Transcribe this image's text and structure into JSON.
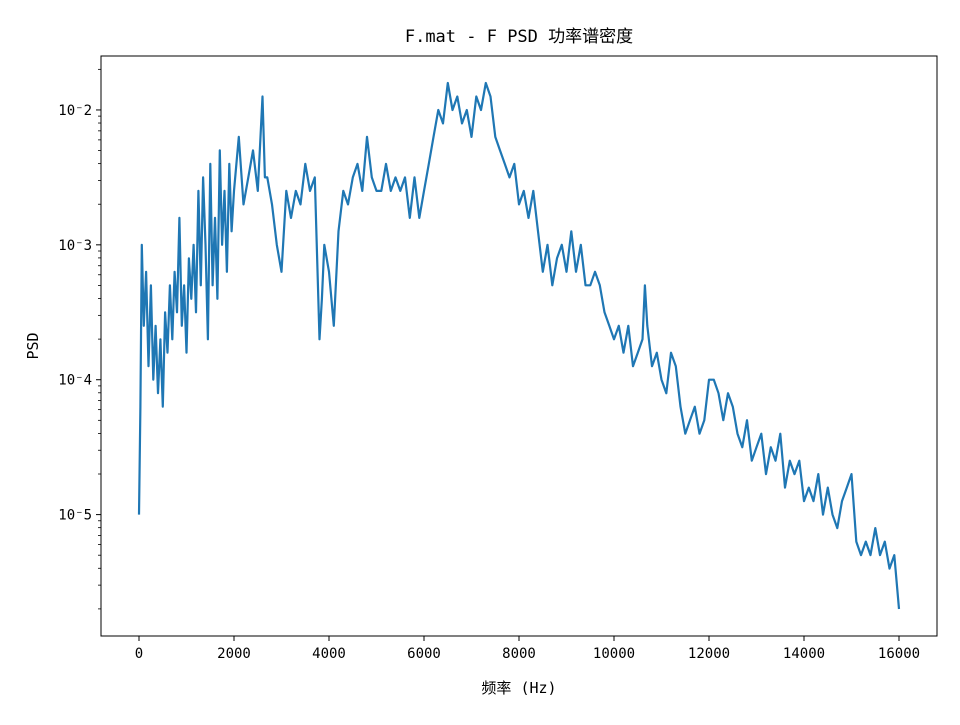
{
  "chart_data": {
    "type": "line",
    "title": "F.mat - F PSD 功率谱密度",
    "xlabel": "频率 (Hz)",
    "ylabel": "PSD",
    "xlim": [
      -800,
      16800
    ],
    "ylim_log10": [
      -5.9,
      -1.6
    ],
    "yscale": "log",
    "grid": false,
    "legend": "none",
    "line_color": "#1f77b4",
    "x_ticks": [
      {
        "value": 0,
        "label": "0"
      },
      {
        "value": 2000,
        "label": "2000"
      },
      {
        "value": 4000,
        "label": "4000"
      },
      {
        "value": 6000,
        "label": "6000"
      },
      {
        "value": 8000,
        "label": "8000"
      },
      {
        "value": 10000,
        "label": "10000"
      },
      {
        "value": 12000,
        "label": "12000"
      },
      {
        "value": 14000,
        "label": "14000"
      },
      {
        "value": 16000,
        "label": "16000"
      }
    ],
    "y_ticks": [
      {
        "log10": -2,
        "label": "10⁻2"
      },
      {
        "log10": -3,
        "label": "10⁻3"
      },
      {
        "log10": -4,
        "label": "10⁻4"
      },
      {
        "log10": -5,
        "label": "10⁻5"
      }
    ],
    "series": [
      {
        "x": [
          0,
          30,
          60,
          100,
          150,
          200,
          250,
          300,
          350,
          400,
          450,
          500,
          550,
          600,
          650,
          700,
          750,
          800,
          850,
          900,
          950,
          1000,
          1050,
          1100,
          1150,
          1200,
          1250,
          1300,
          1350,
          1400,
          1450,
          1500,
          1550,
          1600,
          1650,
          1700,
          1750,
          1800,
          1850,
          1900,
          1950,
          2000,
          2100,
          2200,
          2300,
          2400,
          2500,
          2600,
          2650,
          2700,
          2800,
          2900,
          3000,
          3100,
          3200,
          3300,
          3400,
          3500,
          3600,
          3700,
          3800,
          3850,
          3900,
          4000,
          4100,
          4200,
          4300,
          4400,
          4500,
          4600,
          4700,
          4800,
          4900,
          5000,
          5100,
          5200,
          5300,
          5400,
          5500,
          5600,
          5700,
          5800,
          5900,
          6000,
          6100,
          6200,
          6300,
          6400,
          6500,
          6600,
          6700,
          6800,
          6900,
          7000,
          7100,
          7200,
          7300,
          7400,
          7500,
          7600,
          7700,
          7800,
          7900,
          8000,
          8100,
          8200,
          8300,
          8400,
          8500,
          8600,
          8700,
          8800,
          8900,
          9000,
          9100,
          9200,
          9300,
          9400,
          9500,
          9600,
          9700,
          9800,
          9900,
          10000,
          10100,
          10200,
          10300,
          10400,
          10500,
          10600,
          10650,
          10700,
          10800,
          10900,
          11000,
          11100,
          11200,
          11300,
          11400,
          11500,
          11600,
          11700,
          11800,
          11900,
          12000,
          12100,
          12200,
          12300,
          12400,
          12500,
          12600,
          12700,
          12800,
          12900,
          13000,
          13100,
          13200,
          13300,
          13400,
          13500,
          13600,
          13700,
          13800,
          13900,
          14000,
          14100,
          14200,
          14300,
          14400,
          14500,
          14600,
          14700,
          14800,
          14900,
          15000,
          15100,
          15200,
          15300,
          15400,
          15500,
          15600,
          15700,
          15800,
          15900,
          16000
        ],
        "log10_psd": [
          -5.0,
          -4.2,
          -3.0,
          -3.6,
          -3.2,
          -3.9,
          -3.3,
          -4.0,
          -3.6,
          -4.1,
          -3.7,
          -4.2,
          -3.5,
          -3.8,
          -3.3,
          -3.7,
          -3.2,
          -3.5,
          -2.8,
          -3.6,
          -3.3,
          -3.8,
          -3.1,
          -3.4,
          -3.0,
          -3.5,
          -2.6,
          -3.3,
          -2.5,
          -3.0,
          -3.7,
          -2.4,
          -3.3,
          -2.8,
          -3.4,
          -2.3,
          -3.0,
          -2.6,
          -3.2,
          -2.4,
          -2.9,
          -2.6,
          -2.2,
          -2.7,
          -2.5,
          -2.3,
          -2.6,
          -1.9,
          -2.5,
          -2.5,
          -2.7,
          -3.0,
          -3.2,
          -2.6,
          -2.8,
          -2.6,
          -2.7,
          -2.4,
          -2.6,
          -2.5,
          -3.7,
          -3.4,
          -3.0,
          -3.2,
          -3.6,
          -2.9,
          -2.6,
          -2.7,
          -2.5,
          -2.4,
          -2.6,
          -2.2,
          -2.5,
          -2.6,
          -2.6,
          -2.4,
          -2.6,
          -2.5,
          -2.6,
          -2.5,
          -2.8,
          -2.5,
          -2.8,
          -2.6,
          -2.4,
          -2.2,
          -2.0,
          -2.1,
          -1.8,
          -2.0,
          -1.9,
          -2.1,
          -2.0,
          -2.2,
          -1.9,
          -2.0,
          -1.8,
          -1.9,
          -2.2,
          -2.3,
          -2.4,
          -2.5,
          -2.4,
          -2.7,
          -2.6,
          -2.8,
          -2.6,
          -2.9,
          -3.2,
          -3.0,
          -3.3,
          -3.1,
          -3.0,
          -3.2,
          -2.9,
          -3.2,
          -3.0,
          -3.3,
          -3.3,
          -3.2,
          -3.3,
          -3.5,
          -3.6,
          -3.7,
          -3.6,
          -3.8,
          -3.6,
          -3.9,
          -3.8,
          -3.7,
          -3.3,
          -3.6,
          -3.9,
          -3.8,
          -4.0,
          -4.1,
          -3.8,
          -3.9,
          -4.2,
          -4.4,
          -4.3,
          -4.2,
          -4.4,
          -4.3,
          -4.0,
          -4.0,
          -4.1,
          -4.3,
          -4.1,
          -4.2,
          -4.4,
          -4.5,
          -4.3,
          -4.6,
          -4.5,
          -4.4,
          -4.7,
          -4.5,
          -4.6,
          -4.4,
          -4.8,
          -4.6,
          -4.7,
          -4.6,
          -4.9,
          -4.8,
          -4.9,
          -4.7,
          -5.0,
          -4.8,
          -5.0,
          -5.1,
          -4.9,
          -4.8,
          -4.7,
          -5.2,
          -5.3,
          -5.2,
          -5.3,
          -5.1,
          -5.3,
          -5.2,
          -5.4,
          -5.3,
          -5.7
        ]
      }
    ]
  }
}
